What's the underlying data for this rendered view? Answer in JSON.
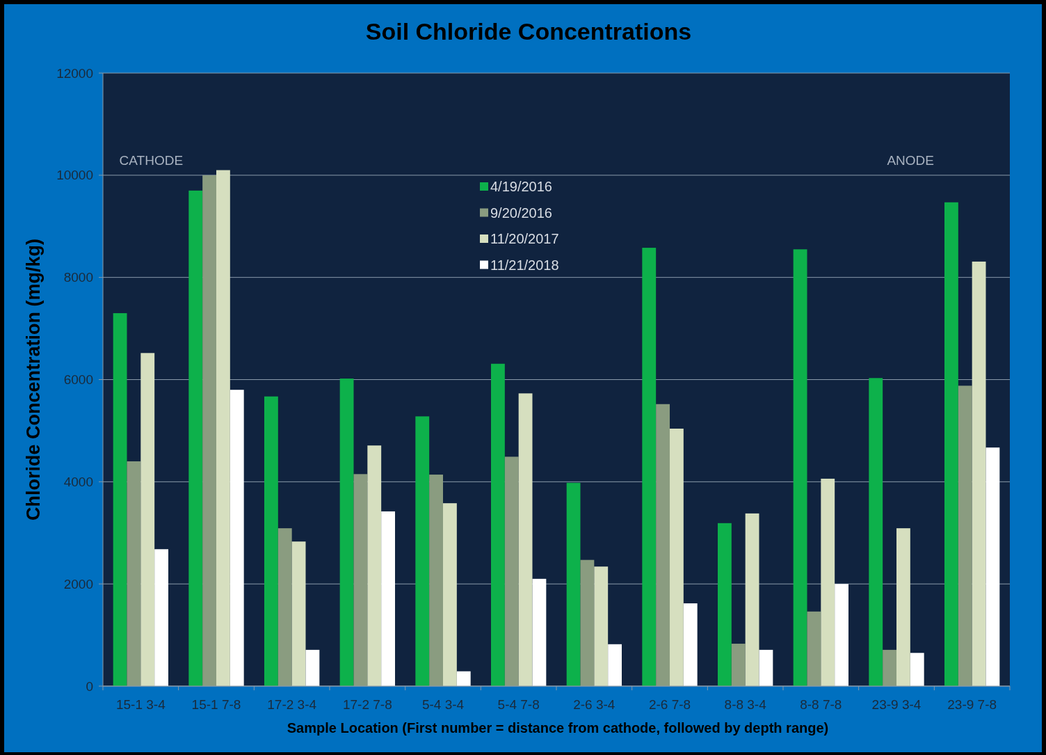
{
  "chart_data": {
    "type": "bar",
    "title": "Soil Chloride Concentrations",
    "xlabel": "Sample Location (First number = distance from cathode, followed by depth range)",
    "ylabel": "Chloride Concentration (mg/kg)",
    "categories": [
      "15-1 3-4",
      "15-1 7-8",
      "17-2 3-4",
      "17-2 7-8",
      "5-4 3-4",
      "5-4 7-8",
      "2-6 3-4",
      "2-6 7-8",
      "8-8 3-4",
      "8-8 7-8",
      "23-9 3-4",
      "23-9 7-8"
    ],
    "series": [
      {
        "name": "4/19/2016",
        "color": "#0db14b",
        "values": [
          7300,
          9700,
          5670,
          6020,
          5280,
          6310,
          3980,
          8580,
          3190,
          8550,
          6030,
          9470
        ]
      },
      {
        "name": "9/20/2016",
        "color": "#8a9c80",
        "values": [
          4400,
          10000,
          3090,
          4150,
          4140,
          4490,
          2470,
          5520,
          830,
          1460,
          710,
          5880
        ]
      },
      {
        "name": "11/20/2017",
        "color": "#d6dfbf",
        "values": [
          6520,
          10100,
          2830,
          4710,
          3580,
          5730,
          2340,
          5040,
          3380,
          4060,
          3090,
          8310
        ]
      },
      {
        "name": "11/21/2018",
        "color": "#ffffff",
        "values": [
          2680,
          5800,
          710,
          3420,
          290,
          2100,
          820,
          1620,
          710,
          2000,
          650,
          4670
        ]
      }
    ],
    "ylim": [
      0,
      12000
    ],
    "yticks": [
      0,
      2000,
      4000,
      6000,
      8000,
      10000,
      12000
    ],
    "grid": "y",
    "legend": "top",
    "annotations": [
      "CATHODE",
      "ANODE"
    ]
  }
}
